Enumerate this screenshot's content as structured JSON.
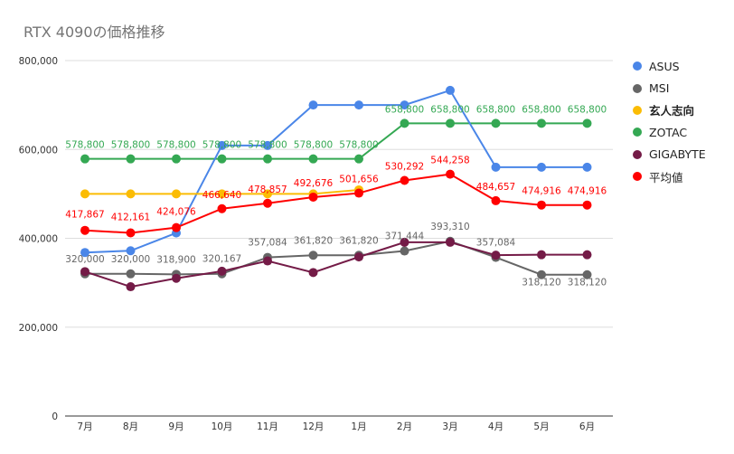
{
  "chart_data": {
    "type": "line",
    "title": "RTX 4090の価格推移",
    "xlabel": "",
    "ylabel": "",
    "categories": [
      "7月",
      "8月",
      "9月",
      "10月",
      "11月",
      "12月",
      "1月",
      "2月",
      "3月",
      "4月",
      "5月",
      "6月"
    ],
    "ylim": [
      0,
      800000
    ],
    "yticks": [
      0,
      200000,
      400000,
      600000,
      800000
    ],
    "ytick_labels": [
      "0",
      "200,000",
      "400,000",
      "600,000",
      "800,000"
    ],
    "grid": true,
    "legend_position": "right",
    "series": [
      {
        "name": "ASUS",
        "color": "#4a86e8",
        "values": [
          368000,
          372000,
          412000,
          609000,
          609000,
          700000,
          700000,
          700000,
          733000,
          560000,
          560000,
          560000
        ],
        "labels": []
      },
      {
        "name": "MSI",
        "color": "#666666",
        "values": [
          320000,
          320000,
          318900,
          320167,
          357084,
          361820,
          361820,
          371444,
          393310,
          357084,
          318120,
          318120
        ],
        "labels": [
          "320,000",
          "320,000",
          "318,900",
          "320,167",
          "357,084",
          "361,820",
          "361,820",
          "371,444",
          "393,310",
          "357,084",
          "318,120",
          "318,120"
        ]
      },
      {
        "name": "玄人志向",
        "color": "#fbbc04",
        "bold": true,
        "values": [
          500000,
          500000,
          500000,
          500000,
          500000,
          500000,
          509000,
          null,
          null,
          null,
          null,
          null
        ],
        "labels": []
      },
      {
        "name": "ZOTAC",
        "color": "#34a853",
        "values": [
          578800,
          578800,
          578800,
          578800,
          578800,
          578800,
          578800,
          658800,
          658800,
          658800,
          658800,
          658800
        ],
        "labels": [
          "578,800",
          "578,800",
          "578,800",
          "578,800",
          "578,800",
          "578,800",
          "578,800",
          "658,800",
          "658,800",
          "658,800",
          "658,800",
          "658,800"
        ]
      },
      {
        "name": "GIGABYTE",
        "color": "#741b47",
        "values": [
          325000,
          291000,
          310000,
          326000,
          349000,
          323000,
          358000,
          391000,
          391000,
          362000,
          363000,
          363000
        ],
        "labels": []
      },
      {
        "name": "平均値",
        "color": "#ff0000",
        "values": [
          417867,
          412161,
          424076,
          466640,
          478857,
          492676,
          501656,
          530292,
          544258,
          484657,
          474916,
          474916
        ],
        "labels": [
          "417,867",
          "412,161",
          "424,076",
          "466,640",
          "478,857",
          "492,676",
          "501,656",
          "530,292",
          "544,258",
          "484,657",
          "474,916",
          "474,916"
        ]
      }
    ]
  }
}
